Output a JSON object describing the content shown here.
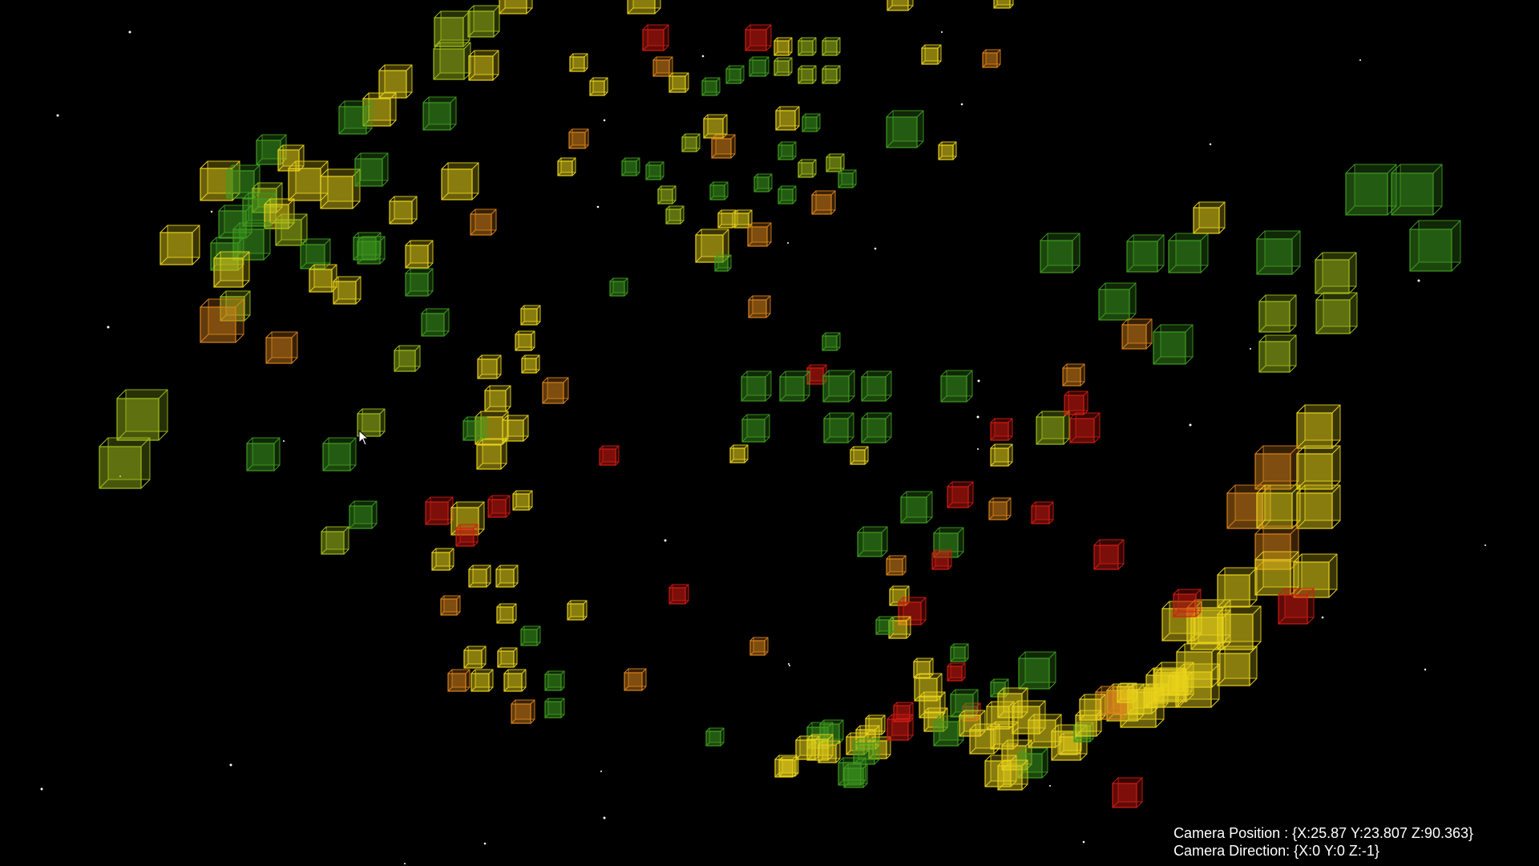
{
  "hud": {
    "camera_position": "Camera Position : {X:25.87 Y:23.807 Z:90.363}",
    "camera_direction": "Camera Direction: {X:0 Y:0 Z:-1}"
  },
  "colors": {
    "background": "#000000",
    "green": "#3f9b1f",
    "yellow_green": "#9fbf1a",
    "yellow": "#e8d21a",
    "orange": "#d8821a",
    "red": "#d21a12",
    "star": "#ffffff",
    "hud_text": "#ffffff"
  },
  "icons": {
    "cursor": "mouse-pointer-icon",
    "voxel": "wireframe-cube-icon"
  }
}
